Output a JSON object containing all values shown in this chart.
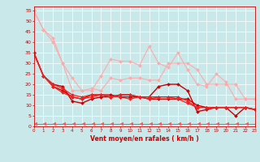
{
  "xlabel": "Vent moyen/en rafales ( km/h )",
  "xlim": [
    0,
    23
  ],
  "ylim": [
    0,
    57
  ],
  "yticks": [
    0,
    5,
    10,
    15,
    20,
    25,
    30,
    35,
    40,
    45,
    50,
    55
  ],
  "xticks": [
    0,
    1,
    2,
    3,
    4,
    5,
    6,
    7,
    8,
    9,
    10,
    11,
    12,
    13,
    14,
    15,
    16,
    17,
    18,
    19,
    20,
    21,
    22,
    23
  ],
  "bg_color": "#c8e8ea",
  "grid_color": "#ffffff",
  "series": [
    {
      "color": "#ffaaaa",
      "linewidth": 0.8,
      "marker": "D",
      "markersize": 2.0,
      "y": [
        55,
        46,
        40,
        30,
        23,
        17,
        17,
        24,
        32,
        31,
        31,
        29,
        38,
        30,
        28,
        35,
        27,
        20,
        19,
        25,
        21,
        13,
        13,
        13
      ]
    },
    {
      "color": "#ffaaaa",
      "linewidth": 0.8,
      "marker": "D",
      "markersize": 2.0,
      "y": [
        55,
        46,
        42,
        30,
        17,
        17,
        18,
        17,
        23,
        22,
        23,
        23,
        22,
        22,
        30,
        30,
        30,
        27,
        20,
        20,
        20,
        20,
        13,
        13
      ]
    },
    {
      "color": "#cc0000",
      "linewidth": 1.0,
      "marker": "D",
      "markersize": 2.0,
      "y": [
        35,
        24,
        20,
        19,
        12,
        11,
        13,
        14,
        14,
        15,
        15,
        14,
        14,
        19,
        20,
        20,
        17,
        7,
        8,
        9,
        9,
        5,
        9,
        8
      ]
    },
    {
      "color": "#cc0000",
      "linewidth": 1.0,
      "marker": "D",
      "markersize": 2.0,
      "y": [
        35,
        24,
        19,
        17,
        14,
        13,
        15,
        15,
        15,
        14,
        14,
        14,
        13,
        13,
        13,
        13,
        13,
        10,
        9,
        9,
        9,
        9,
        9,
        8
      ]
    },
    {
      "color": "#ee2222",
      "linewidth": 0.9,
      "marker": "D",
      "markersize": 2.0,
      "y": [
        35,
        24,
        20,
        18,
        15,
        14,
        15,
        15,
        14,
        15,
        15,
        14,
        14,
        14,
        14,
        14,
        12,
        9,
        9,
        9,
        9,
        9,
        9,
        8
      ]
    },
    {
      "color": "#ee2222",
      "linewidth": 0.9,
      "marker": "D",
      "markersize": 2.0,
      "y": [
        35,
        24,
        19,
        16,
        14,
        13,
        14,
        15,
        14,
        14,
        13,
        14,
        13,
        14,
        14,
        13,
        11,
        9,
        9,
        9,
        9,
        9,
        9,
        8
      ]
    },
    {
      "color": "#ff5555",
      "linewidth": 0.7,
      "marker": 4,
      "markersize": 3.5,
      "y": [
        1,
        1,
        1,
        1,
        1,
        1,
        1,
        1,
        1,
        1,
        1,
        1,
        1,
        1,
        1,
        1,
        1,
        1,
        1,
        1,
        1,
        1,
        1,
        1
      ]
    }
  ]
}
